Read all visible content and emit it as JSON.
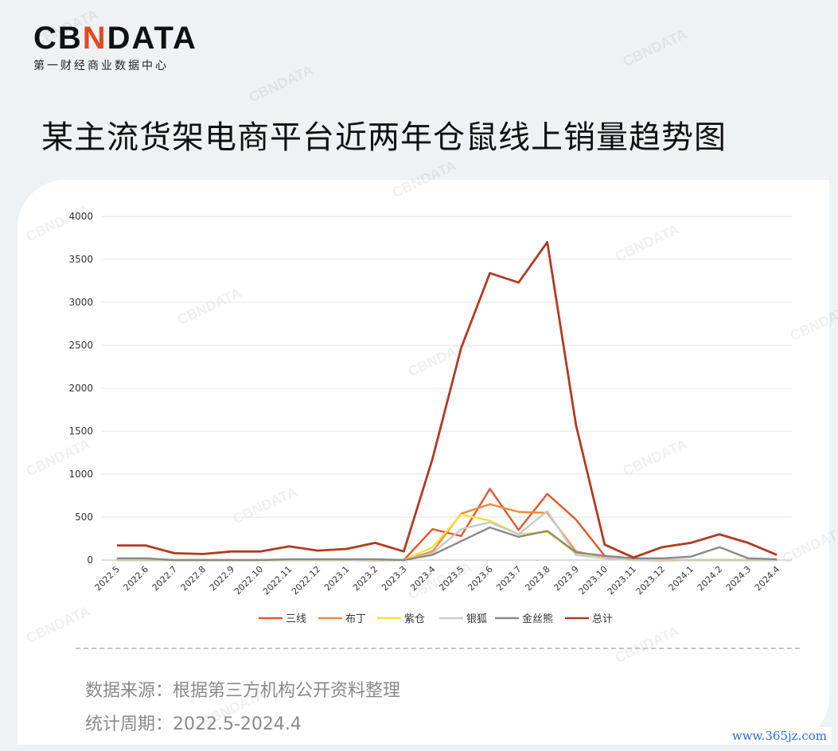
{
  "brand": {
    "logo_part1": "CB",
    "logo_accent": "N",
    "logo_part2": "DATA",
    "subtitle": "第一财经商业数据中心",
    "watermark": "CBNDATA"
  },
  "title": "某主流货架电商平台近两年仓鼠线上销量趋势图",
  "footer": {
    "source": "数据来源：根据第三方机构公开资料整理",
    "period": "统计周期：2022.5-2024.4",
    "site": "www.365jz.com"
  },
  "chart_data": {
    "type": "line",
    "title": "",
    "xlabel": "",
    "ylabel": "",
    "ylim": [
      0,
      4000
    ],
    "yticks": [
      0,
      500,
      1000,
      1500,
      2000,
      2500,
      3000,
      3500,
      4000
    ],
    "grid": true,
    "legend_position": "bottom",
    "categories": [
      "2022.5",
      "2022.6",
      "2022.7",
      "2022.8",
      "2022.9",
      "2022.10",
      "2022.11",
      "2022.12",
      "2023.1",
      "2023.2",
      "2023.3",
      "2023.4",
      "2023.5",
      "2023.6",
      "2023.7",
      "2023.8",
      "2023.9",
      "2023.10",
      "2023.11",
      "2023.12",
      "2024.1",
      "2024.2",
      "2024.3",
      "2024.4"
    ],
    "series": [
      {
        "name": "三线",
        "color": "#e8552a",
        "values": [
          0,
          0,
          0,
          0,
          0,
          0,
          0,
          0,
          0,
          0,
          0,
          360,
          280,
          830,
          350,
          770,
          470,
          50,
          0,
          0,
          0,
          0,
          0,
          0
        ]
      },
      {
        "name": "布丁",
        "color": "#f08a3c",
        "values": [
          0,
          0,
          0,
          0,
          0,
          0,
          0,
          0,
          0,
          0,
          0,
          100,
          540,
          650,
          560,
          550,
          100,
          30,
          0,
          0,
          0,
          0,
          0,
          0
        ]
      },
      {
        "name": "紫仓",
        "color": "#f2e33a",
        "values": [
          0,
          0,
          0,
          0,
          0,
          0,
          0,
          0,
          0,
          -10,
          0,
          150,
          530,
          460,
          300,
          330,
          80,
          20,
          0,
          -10,
          0,
          0,
          0,
          0
        ]
      },
      {
        "name": "银狐",
        "color": "#c9c9c9",
        "values": [
          0,
          0,
          0,
          0,
          0,
          0,
          0,
          0,
          0,
          0,
          0,
          80,
          360,
          440,
          300,
          570,
          60,
          20,
          0,
          0,
          0,
          0,
          0,
          0
        ]
      },
      {
        "name": "金丝熊",
        "color": "#8a8a8a",
        "values": [
          20,
          20,
          0,
          0,
          0,
          0,
          10,
          10,
          10,
          10,
          0,
          60,
          220,
          380,
          270,
          340,
          90,
          50,
          20,
          20,
          40,
          150,
          20,
          10
        ]
      },
      {
        "name": "总计",
        "color": "#b03a22",
        "values": [
          170,
          170,
          80,
          70,
          100,
          100,
          160,
          110,
          130,
          200,
          100,
          1180,
          2470,
          3340,
          3230,
          3700,
          1570,
          180,
          30,
          150,
          200,
          300,
          200,
          60
        ]
      }
    ]
  }
}
